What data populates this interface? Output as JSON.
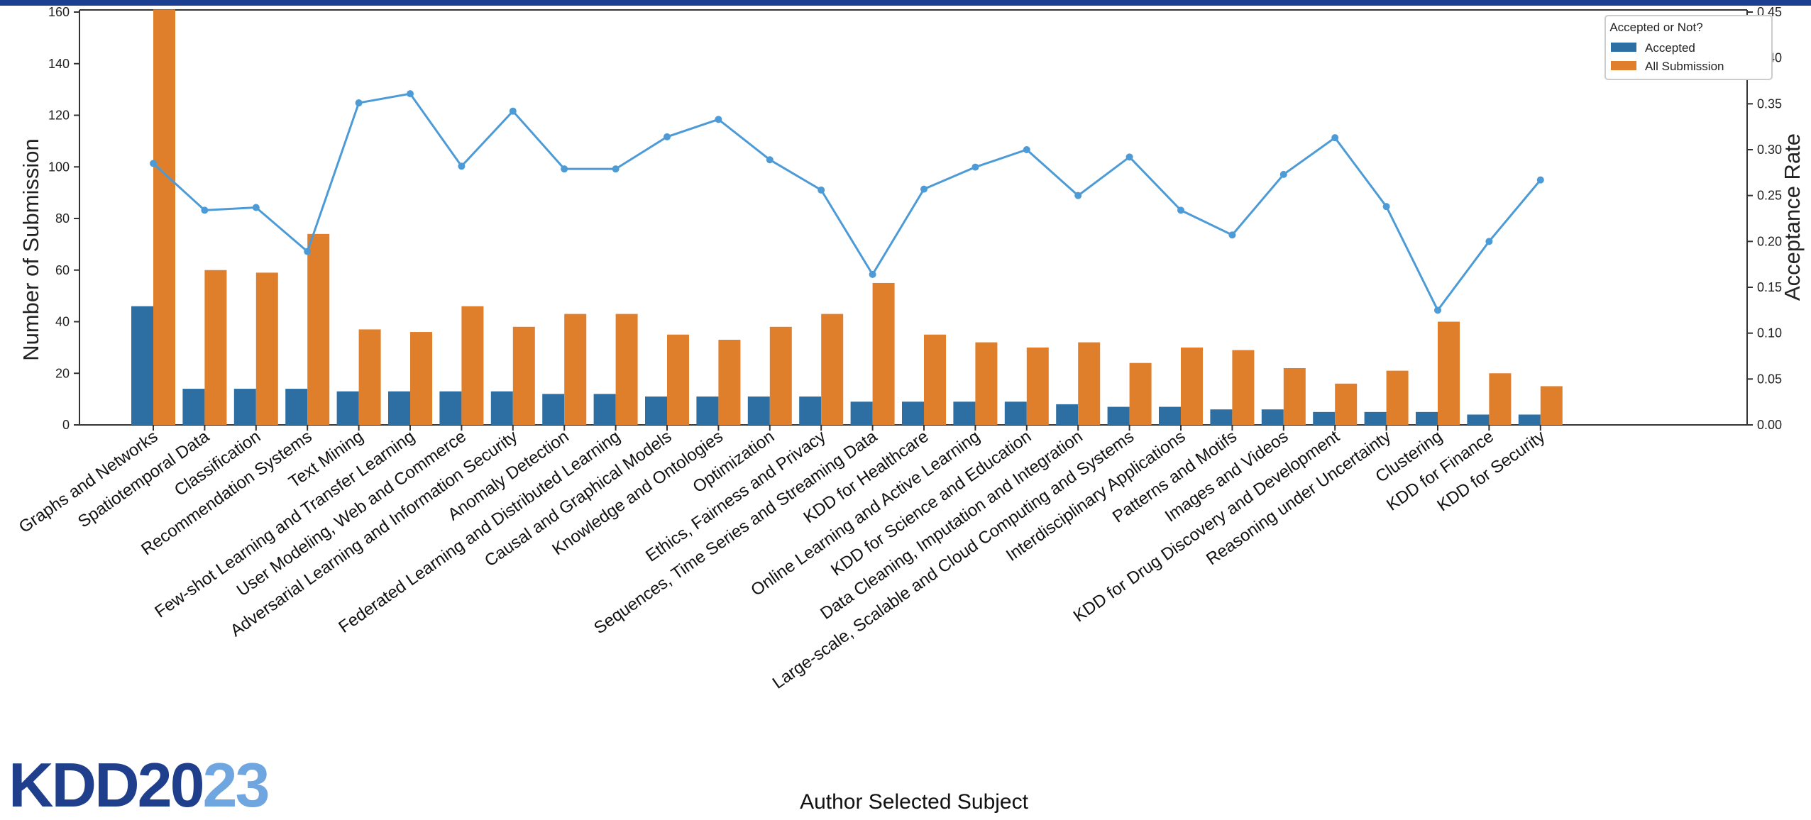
{
  "colors": {
    "topbar": "#1d3f8f",
    "accepted": "#2e6fa3",
    "all_submission": "#e07f2b",
    "rate_line": "#4c9bd6",
    "logo_dark": "#1f3f8c",
    "logo_light": "#6fa6e0"
  },
  "logo": {
    "part1": "KDD20",
    "part2": "23"
  },
  "chart_data": {
    "type": "bar",
    "xlabel": "Author Selected Subject",
    "ylabel": "Number of Submission",
    "y2label": "Acceptance Rate",
    "ylim": [
      0,
      165
    ],
    "y2lim": [
      0,
      0.45
    ],
    "yticks": [
      "0",
      "20",
      "40",
      "60",
      "80",
      "100",
      "120",
      "140",
      "160"
    ],
    "y2ticks": [
      "0.00",
      "0.05",
      "0.10",
      "0.15",
      "0.20",
      "0.25",
      "0.30",
      "0.35",
      "0.40",
      "0.45"
    ],
    "legend": {
      "title": "Accepted or Not?",
      "position": "top-right",
      "entries": [
        "Accepted",
        "All Submission"
      ]
    },
    "categories": [
      "Graphs and Networks",
      "Spatiotemporal Data",
      "Classification",
      "Recommendation Systems",
      "Text Mining",
      "Few-shot Learning and Transfer Learning",
      "User Modeling, Web and Commerce",
      "Adversarial Learning and Information Security",
      "Anomaly Detection",
      "Federated Learning and Distributed Learning",
      "Causal and Graphical Models",
      "Knowledge and Ontologies",
      "Optimization",
      "Ethics, Fairness and Privacy",
      "Sequences, Time Series and Streaming Data",
      "KDD for Healthcare",
      "Online Learning and Active Learning",
      "KDD for Science and Education",
      "Data Cleaning, Imputation and Integration",
      "Large-scale, Scalable and Cloud Computing and Systems",
      "Interdisciplinary Applications",
      "Patterns and Motifs",
      "Images and Videos",
      "KDD for Drug Discovery and Development",
      "Reasoning under Uncertainty",
      "Clustering",
      "KDD for Finance",
      "KDD for Security"
    ],
    "series": [
      {
        "name": "Accepted",
        "values": [
          46,
          14,
          14,
          14,
          13,
          13,
          13,
          13,
          12,
          12,
          11,
          11,
          11,
          11,
          9,
          9,
          9,
          9,
          8,
          7,
          7,
          6,
          6,
          5,
          5,
          5,
          4,
          4
        ]
      },
      {
        "name": "All Submission",
        "values": [
          161,
          60,
          59,
          74,
          37,
          36,
          46,
          38,
          43,
          43,
          35,
          33,
          38,
          43,
          55,
          35,
          32,
          30,
          32,
          24,
          30,
          29,
          22,
          16,
          21,
          40,
          20,
          15
        ]
      }
    ],
    "rate": [
      0.285,
      0.234,
      0.237,
      0.189,
      0.351,
      0.361,
      0.282,
      0.342,
      0.279,
      0.279,
      0.314,
      0.333,
      0.289,
      0.256,
      0.164,
      0.257,
      0.281,
      0.3,
      0.25,
      0.292,
      0.234,
      0.207,
      0.273,
      0.313,
      0.238,
      0.125,
      0.2,
      0.267
    ]
  }
}
